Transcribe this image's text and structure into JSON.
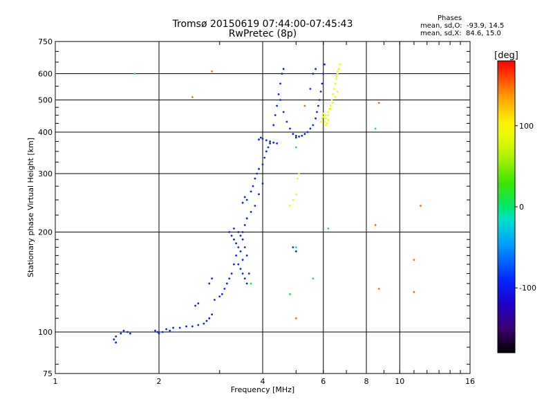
{
  "chart_data": {
    "type": "scatter",
    "title": "Tromsø 20150619 07:44:00-07:45:43",
    "subtitle": "RwPretec (8p)",
    "xlabel": "Frequency [MHz]",
    "ylabel": "Stationary phase Virtual Height [km]",
    "xscale": "log",
    "yscale": "log",
    "xlim": [
      1,
      16
    ],
    "ylim": [
      75,
      750
    ],
    "xticks": [
      1,
      2,
      4,
      6,
      8,
      10,
      16
    ],
    "yticks": [
      75,
      100,
      200,
      300,
      400,
      500,
      600,
      750
    ],
    "grid": true,
    "phase_box": {
      "heading": "Phases",
      "line_o": "mean, sd,O:  -93.9, 14.5",
      "line_x": "mean, sd,X:  84.6, 15.0"
    },
    "colorbar": {
      "label": "[deg]",
      "range": [
        -180,
        180
      ],
      "ticks": [
        100,
        0,
        -100
      ],
      "placement": "right"
    },
    "series": [
      {
        "phase": -95,
        "points": [
          [
            1.48,
            95
          ],
          [
            1.5,
            93
          ],
          [
            1.5,
            97
          ],
          [
            1.55,
            99
          ],
          [
            1.58,
            101
          ],
          [
            1.62,
            100
          ],
          [
            1.65,
            99
          ],
          [
            1.95,
            101
          ],
          [
            1.98,
            100
          ],
          [
            2.0,
            99
          ],
          [
            2.05,
            100
          ],
          [
            2.1,
            102
          ],
          [
            2.15,
            101
          ],
          [
            2.2,
            103
          ],
          [
            2.3,
            103
          ],
          [
            2.4,
            104
          ],
          [
            2.5,
            104
          ],
          [
            2.6,
            105
          ],
          [
            2.7,
            106
          ],
          [
            2.75,
            108
          ],
          [
            2.8,
            110
          ],
          [
            2.85,
            113
          ],
          [
            2.55,
            120
          ],
          [
            2.6,
            122
          ],
          [
            2.8,
            140
          ],
          [
            2.85,
            145
          ],
          [
            2.9,
            125
          ],
          [
            3.0,
            128
          ],
          [
            3.05,
            130
          ],
          [
            3.1,
            135
          ],
          [
            3.15,
            140
          ],
          [
            3.2,
            145
          ],
          [
            3.25,
            150
          ],
          [
            3.3,
            160
          ],
          [
            3.35,
            170
          ],
          [
            3.2,
            200
          ],
          [
            3.25,
            195
          ],
          [
            3.3,
            190
          ],
          [
            3.35,
            185
          ],
          [
            3.4,
            180
          ],
          [
            3.45,
            175
          ],
          [
            3.5,
            165
          ],
          [
            3.3,
            205
          ],
          [
            3.4,
            200
          ],
          [
            3.45,
            195
          ],
          [
            3.5,
            190
          ],
          [
            3.55,
            180
          ],
          [
            3.6,
            170
          ],
          [
            3.4,
            160
          ],
          [
            3.45,
            155
          ],
          [
            3.5,
            150
          ],
          [
            3.55,
            145
          ],
          [
            3.6,
            140
          ],
          [
            3.65,
            150
          ],
          [
            3.5,
            200
          ],
          [
            3.55,
            210
          ],
          [
            3.6,
            220
          ],
          [
            3.7,
            230
          ],
          [
            3.8,
            240
          ],
          [
            3.9,
            260
          ],
          [
            4.0,
            280
          ],
          [
            3.5,
            245
          ],
          [
            3.55,
            255
          ],
          [
            3.6,
            250
          ],
          [
            3.7,
            265
          ],
          [
            3.75,
            275
          ],
          [
            3.8,
            290
          ],
          [
            3.85,
            300
          ],
          [
            3.9,
            310
          ],
          [
            4.0,
            320
          ],
          [
            4.05,
            335
          ],
          [
            4.1,
            350
          ],
          [
            4.15,
            360
          ],
          [
            4.2,
            370
          ],
          [
            3.9,
            380
          ],
          [
            3.95,
            385
          ],
          [
            4.0,
            382
          ],
          [
            4.1,
            378
          ],
          [
            4.2,
            375
          ],
          [
            4.3,
            372
          ],
          [
            4.4,
            370
          ],
          [
            4.3,
            420
          ],
          [
            4.35,
            450
          ],
          [
            4.4,
            480
          ],
          [
            4.45,
            520
          ],
          [
            4.5,
            560
          ],
          [
            4.55,
            600
          ],
          [
            4.6,
            620
          ],
          [
            4.5,
            500
          ],
          [
            4.6,
            460
          ],
          [
            4.7,
            430
          ],
          [
            4.8,
            410
          ],
          [
            4.9,
            395
          ],
          [
            5.0,
            390
          ],
          [
            5.1,
            388
          ],
          [
            5.0,
            385
          ],
          [
            5.2,
            390
          ],
          [
            5.3,
            395
          ],
          [
            5.4,
            400
          ],
          [
            5.5,
            410
          ],
          [
            5.6,
            420
          ],
          [
            5.7,
            440
          ],
          [
            5.75,
            460
          ],
          [
            5.8,
            480
          ],
          [
            5.85,
            500
          ],
          [
            5.9,
            530
          ],
          [
            5.95,
            560
          ],
          [
            6.0,
            600
          ],
          [
            6.05,
            640
          ],
          [
            5.5,
            540
          ],
          [
            5.6,
            600
          ],
          [
            5.7,
            620
          ],
          [
            4.9,
            180
          ],
          [
            5.0,
            175
          ]
        ]
      },
      {
        "phase": 90,
        "points": [
          [
            5.9,
            430
          ],
          [
            5.95,
            440
          ],
          [
            6.0,
            445
          ],
          [
            6.05,
            430
          ],
          [
            6.1,
            420
          ],
          [
            6.15,
            425
          ],
          [
            6.2,
            435
          ],
          [
            6.1,
            450
          ],
          [
            6.2,
            460
          ],
          [
            6.25,
            470
          ],
          [
            6.3,
            480
          ],
          [
            6.35,
            500
          ],
          [
            6.4,
            520
          ],
          [
            6.45,
            540
          ],
          [
            6.5,
            560
          ],
          [
            6.55,
            580
          ],
          [
            6.6,
            600
          ],
          [
            6.65,
            620
          ],
          [
            6.7,
            640
          ],
          [
            6.6,
            610
          ],
          [
            6.55,
            590
          ],
          [
            6.0,
            455
          ],
          [
            6.1,
            440
          ],
          [
            6.2,
            450
          ],
          [
            6.3,
            470
          ],
          [
            6.4,
            490
          ],
          [
            6.5,
            510
          ],
          [
            6.6,
            530
          ],
          [
            5.0,
            260
          ],
          [
            4.9,
            250
          ],
          [
            4.8,
            240
          ],
          [
            5.05,
            290
          ],
          [
            5.1,
            300
          ]
        ]
      },
      {
        "phase": 150,
        "points": [
          [
            2.85,
            610
          ],
          [
            2.5,
            510
          ],
          [
            5.3,
            480
          ],
          [
            8.7,
            490
          ],
          [
            8.5,
            210
          ],
          [
            8.7,
            135
          ],
          [
            11.5,
            240
          ],
          [
            11.0,
            165
          ],
          [
            11.0,
            132
          ],
          [
            5.0,
            110
          ]
        ]
      },
      {
        "phase": 10,
        "points": [
          [
            5.6,
            145
          ],
          [
            5.0,
            360
          ],
          [
            3.7,
            140
          ],
          [
            4.8,
            130
          ],
          [
            6.2,
            205
          ]
        ]
      },
      {
        "phase": -10,
        "points": [
          [
            1.7,
            600
          ],
          [
            8.5,
            410
          ],
          [
            5.0,
            180
          ]
        ]
      }
    ]
  }
}
